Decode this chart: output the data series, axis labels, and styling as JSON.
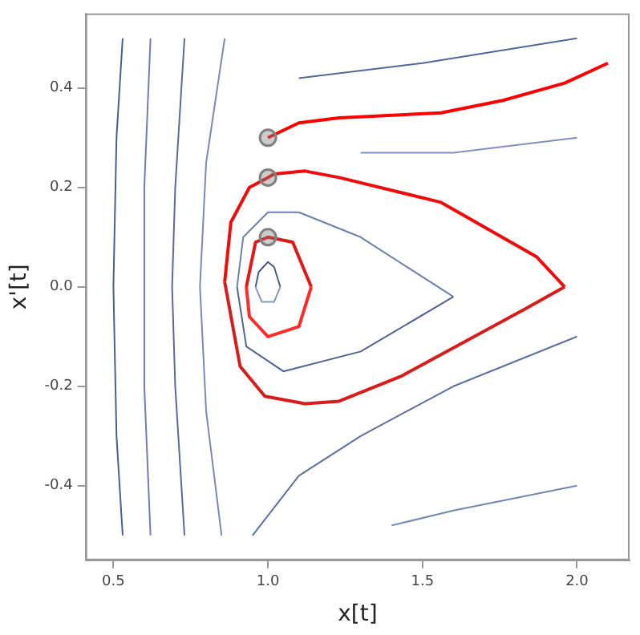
{
  "chart_data": {
    "type": "line",
    "xlabel": "x[t]",
    "ylabel": "x'[t]",
    "xlim": [
      0.41,
      2.17
    ],
    "ylim": [
      -0.55,
      0.55
    ],
    "xticks": [
      0.5,
      {
        "value": 1,
        "label": "1.0"
      },
      1.5,
      {
        "value": 2,
        "label": "2.0"
      }
    ],
    "yticks": [
      -0.4,
      -0.2,
      {
        "value": 0,
        "label": "0.0"
      },
      0.2,
      0.4
    ],
    "grid": false,
    "legend": false,
    "line_style": "solid",
    "marker": "none",
    "series": [
      {
        "color": "#4a5f8f",
        "x": [
          0.53,
          0.51,
          0.5,
          0.51,
          0.53
        ],
        "values": [
          -0.5,
          -0.3,
          0,
          0.3,
          0.5
        ]
      },
      {
        "color": "#6e7db0",
        "x": [
          0.62,
          0.6,
          0.6,
          0.6,
          0.62
        ],
        "values": [
          -0.5,
          -0.2,
          0,
          0.2,
          0.5
        ]
      },
      {
        "color": "#56699a",
        "x": [
          0.73,
          0.7,
          0.69,
          0.7,
          0.73
        ],
        "values": [
          -0.5,
          -0.2,
          0,
          0.2,
          0.5
        ]
      },
      {
        "color": "#7a88b8",
        "x": [
          0.85,
          0.8,
          0.78,
          0.8,
          0.86
        ],
        "values": [
          -0.5,
          -0.25,
          0,
          0.25,
          0.5
        ]
      },
      {
        "color": "#485c88",
        "x": [
          0.96,
          0.97,
          1,
          1.02,
          1.04
        ],
        "values": [
          0,
          0.03,
          0.05,
          0.04,
          0
        ]
      },
      {
        "color": "#8494c4",
        "x": [
          0.96,
          0.98,
          1.02,
          1.04
        ],
        "values": [
          0,
          -0.03,
          -0.03,
          0
        ]
      },
      {
        "color": "#6a80ae",
        "x": [
          0.9,
          0.92,
          1,
          1.1,
          1.3,
          1.6
        ],
        "values": [
          0,
          0.1,
          0.15,
          0.15,
          0.1,
          -0.02
        ]
      },
      {
        "color": "#4f6494",
        "x": [
          0.9,
          0.93,
          1.05,
          1.3,
          1.6
        ],
        "values": [
          0,
          -0.12,
          -0.17,
          -0.13,
          -0.02
        ]
      },
      {
        "color": "#52679c",
        "x": [
          1.1,
          1.5,
          2
        ],
        "values": [
          0.42,
          0.45,
          0.5
        ]
      },
      {
        "color": "#8090c0",
        "x": [
          1.3,
          1.6,
          2
        ],
        "values": [
          0.27,
          0.27,
          0.3
        ]
      },
      {
        "color": "#5d70a2",
        "x": [
          2,
          1.6,
          1.3,
          1.1,
          0.95
        ],
        "values": [
          -0.1,
          -0.2,
          -0.3,
          -0.38,
          -0.5
        ]
      },
      {
        "color": "#7486b6",
        "x": [
          2,
          1.6,
          1.4
        ],
        "values": [
          -0.4,
          -0.45,
          -0.48
        ]
      },
      {
        "color": "#ff0000",
        "x": [
          1,
          1.1,
          1.23,
          1.56,
          1.76,
          1.96,
          2.1
        ],
        "values": [
          0.3,
          0.33,
          0.34,
          0.35,
          0.375,
          0.41,
          0.45
        ]
      },
      {
        "color": "#f00a0a",
        "x": [
          0.86,
          0.88,
          0.94,
          1,
          1.02,
          1.12,
          1.23,
          1.56,
          1.87,
          1.96
        ],
        "values": [
          0.01,
          0.13,
          0.2,
          0.22,
          0.227,
          0.233,
          0.22,
          0.17,
          0.06,
          0
        ]
      },
      {
        "color": "#d81c1c",
        "x": [
          0.86,
          0.91,
          0.99,
          1.12,
          1.23,
          1.43,
          1.83,
          1.96
        ],
        "values": [
          0.01,
          -0.16,
          -0.22,
          -0.235,
          -0.23,
          -0.18,
          -0.045,
          0
        ]
      },
      {
        "color": "#e01818",
        "x": [
          0.93,
          0.96,
          1,
          1.08,
          1.14
        ],
        "values": [
          0,
          0.09,
          0.1,
          0.09,
          0
        ]
      },
      {
        "color": "#ff2a2a",
        "x": [
          0.93,
          0.94,
          1,
          1.1,
          1.14
        ],
        "values": [
          0,
          -0.06,
          -0.1,
          -0.08,
          0
        ]
      },
      {
        "type": "scatter",
        "marker": "circle",
        "color": "#808080",
        "x": [
          1,
          1,
          1
        ],
        "values": [
          0.3,
          0.22,
          0.1
        ]
      }
    ]
  }
}
